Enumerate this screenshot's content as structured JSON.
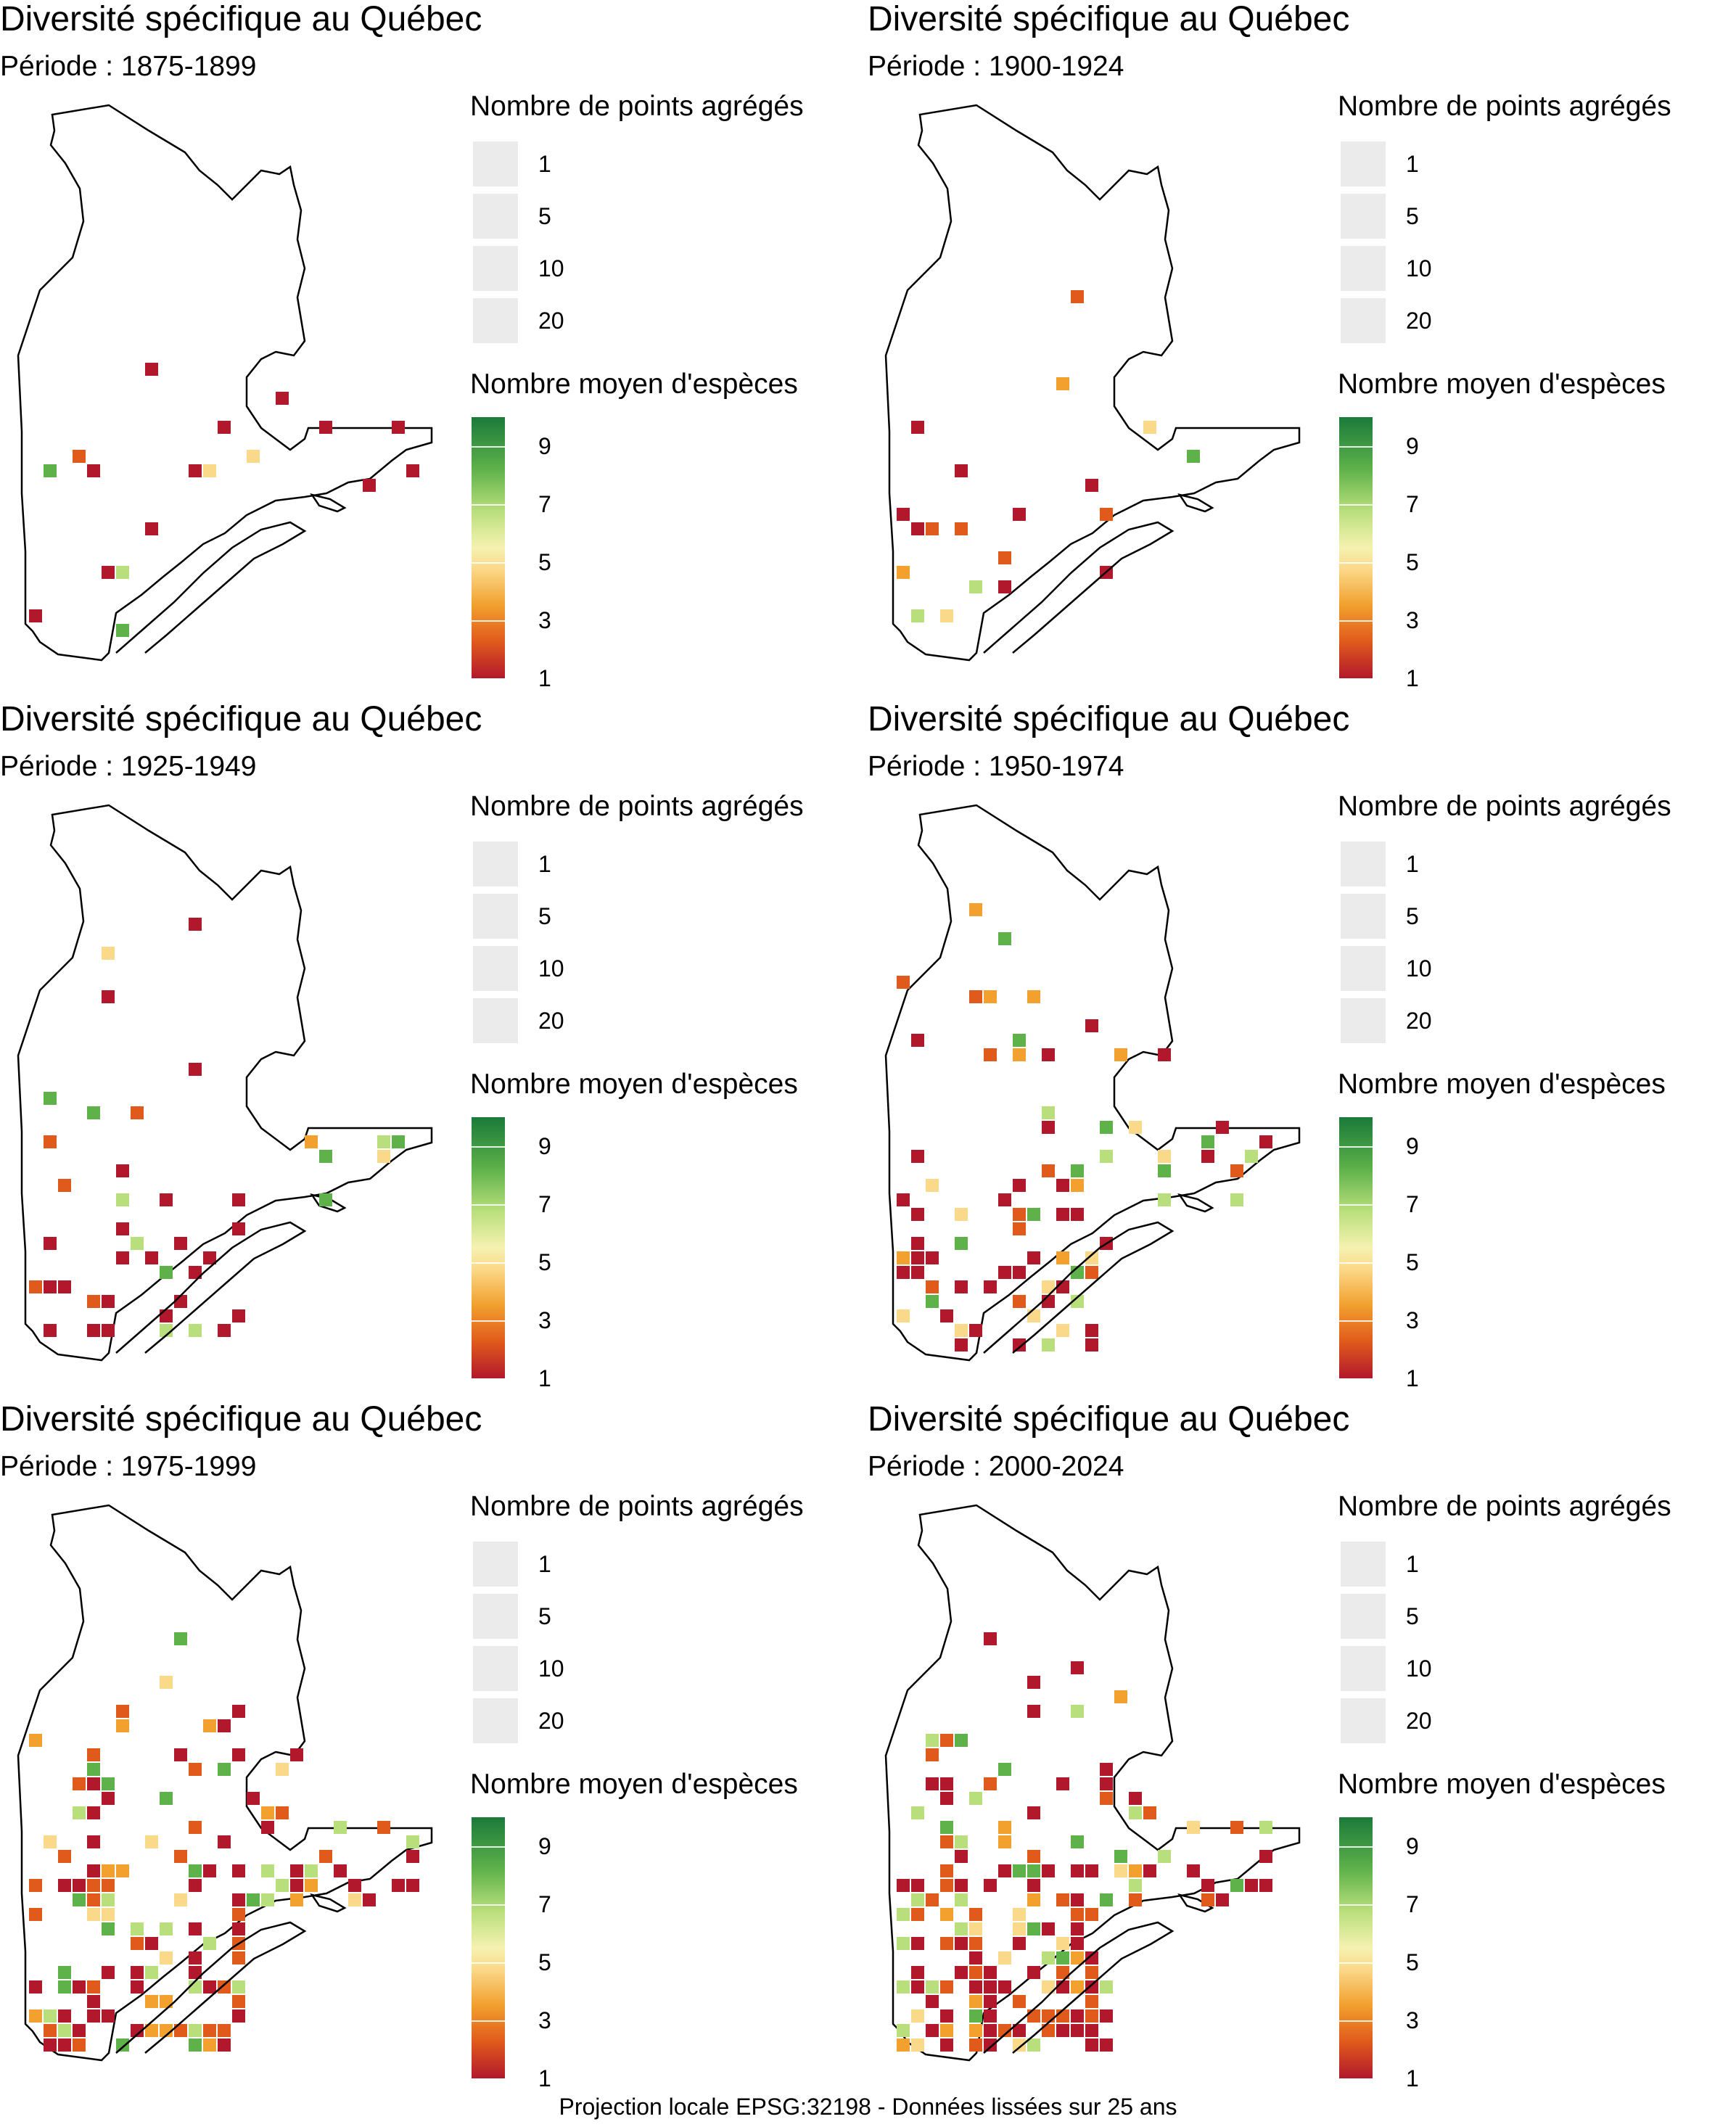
{
  "panels": [
    {
      "title": "Diversité spécifique au Québec",
      "subtitle": "Période : 1875-1899",
      "size_legend_title": "Nombre de points agrégés",
      "color_legend_title": "Nombre moyen d'espèces",
      "density": 1
    },
    {
      "title": "Diversité spécifique au Québec",
      "subtitle": "Période : 1900-1924",
      "size_legend_title": "Nombre de points agrégés",
      "color_legend_title": "Nombre moyen d'espèces",
      "density": 1
    },
    {
      "title": "Diversité spécifique au Québec",
      "subtitle": "Période : 1925-1949",
      "size_legend_title": "Nombre de points agrégés",
      "color_legend_title": "Nombre moyen d'espèces",
      "density": 2
    },
    {
      "title": "Diversité spécifique au Québec",
      "subtitle": "Période : 1950-1974",
      "size_legend_title": "Nombre de points agrégés",
      "color_legend_title": "Nombre moyen d'espèces",
      "density": 3
    },
    {
      "title": "Diversité spécifique au Québec",
      "subtitle": "Période : 1975-1999",
      "size_legend_title": "Nombre de points agrégés",
      "color_legend_title": "Nombre moyen d'espèces",
      "density": 4
    },
    {
      "title": "Diversité spécifique au Québec",
      "subtitle": "Période : 2000-2024",
      "size_legend_title": "Nombre de points agrégés",
      "color_legend_title": "Nombre moyen d'espèces",
      "density": 5
    }
  ],
  "size_legend": [
    "1",
    "5",
    "10",
    "20"
  ],
  "color_legend": [
    "9",
    "7",
    "5",
    "3",
    "1"
  ],
  "colors": {
    "low": "#b2182b",
    "mid_low": "#e05a1c",
    "mid": "#f2a02e",
    "pale": "#fbd98a",
    "light_green": "#b9df7c",
    "green": "#5fb24a",
    "dark_green": "#1a7a3a",
    "na": "#999999",
    "size_key": "#ebebeb"
  },
  "footer": "Projection locale EPSG:32198 - Données lissées sur 25 ans"
}
